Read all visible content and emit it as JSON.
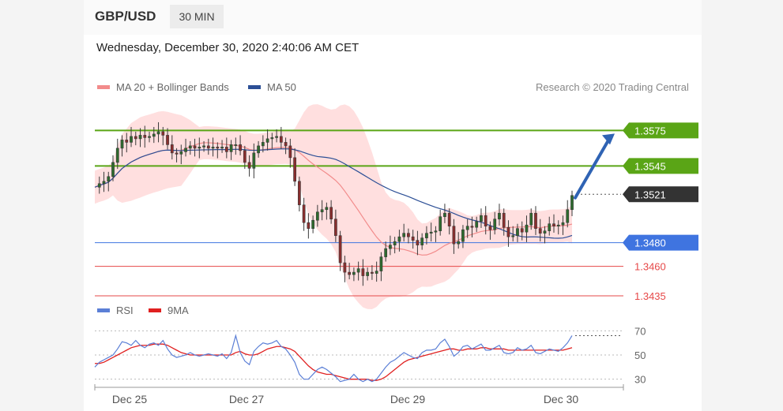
{
  "header": {
    "pair": "GBP/USD",
    "timeframe": "30 MIN"
  },
  "datetime": "Wednesday, December 30, 2020 2:40:06 AM CET",
  "legend_main": [
    {
      "label": "MA 20 + Bollinger Bands",
      "color": "#f28b8b"
    },
    {
      "label": "MA 50",
      "color": "#2c4f96"
    }
  ],
  "legend_rsi": [
    {
      "label": "RSI",
      "color": "#5b7fd6"
    },
    {
      "label": "9MA",
      "color": "#e02020"
    }
  ],
  "credit": "Research © 2020 Trading Central",
  "colors": {
    "resistance": "#5aa516",
    "support": "#3f74e0",
    "support_minor": "#e64848",
    "current": "#333333",
    "bands": "#ffd9d9",
    "ma20": "#f28b8b",
    "ma50": "#2c4f96",
    "candle": "#3a3a3a",
    "rsi": "#5b7fd6",
    "rsi_ma": "#e02020",
    "arrow": "#2f63b4"
  },
  "chart_data": [
    {
      "type": "candlestick",
      "yaxis": {
        "min": 1.3425,
        "max": 1.36
      },
      "x_labels": [
        "Dec 25",
        "Dec 27",
        "Dec 29",
        "Dec 30"
      ],
      "levels": [
        {
          "value": 1.3575,
          "label": "1.3575",
          "kind": "resistance"
        },
        {
          "value": 1.3545,
          "label": "1.3545",
          "kind": "resistance"
        },
        {
          "value": 1.3521,
          "label": "1.3521",
          "kind": "current"
        },
        {
          "value": 1.348,
          "label": "1.3480",
          "kind": "support"
        },
        {
          "value": 1.346,
          "label": "1.3460",
          "kind": "support_minor"
        },
        {
          "value": 1.3435,
          "label": "1.3435",
          "kind": "support_minor"
        }
      ],
      "price_path": [
        1.3527,
        1.353,
        1.3532,
        1.3536,
        1.3548,
        1.356,
        1.3567,
        1.3565,
        1.357,
        1.3568,
        1.3571,
        1.3569,
        1.357,
        1.3572,
        1.3574,
        1.3571,
        1.3563,
        1.3556,
        1.3555,
        1.3557,
        1.356,
        1.3562,
        1.356,
        1.3561,
        1.3562,
        1.356,
        1.3561,
        1.356,
        1.3561,
        1.3557,
        1.3563,
        1.3563,
        1.3558,
        1.3548,
        1.3543,
        1.3556,
        1.3562,
        1.3565,
        1.3568,
        1.3569,
        1.357,
        1.3565,
        1.3562,
        1.3552,
        1.3532,
        1.3512,
        1.3497,
        1.3492,
        1.3499,
        1.3506,
        1.3508,
        1.351,
        1.35,
        1.3486,
        1.3463,
        1.3455,
        1.3453,
        1.3455,
        1.3458,
        1.3452,
        1.3455,
        1.3454,
        1.3456,
        1.3468,
        1.3475,
        1.3478,
        1.3481,
        1.3485,
        1.3488,
        1.3485,
        1.3482,
        1.3478,
        1.3484,
        1.3488,
        1.3489,
        1.349,
        1.3502,
        1.3505,
        1.3494,
        1.3479,
        1.3481,
        1.3491,
        1.3494,
        1.3493,
        1.3498,
        1.3503,
        1.3494,
        1.3491,
        1.35,
        1.3505,
        1.3493,
        1.3485,
        1.3486,
        1.3492,
        1.3489,
        1.3495,
        1.3505,
        1.3492,
        1.3488,
        1.349,
        1.3496,
        1.3494,
        1.3495,
        1.3497,
        1.3508,
        1.352
      ],
      "projection": {
        "from": 1.3518,
        "to": 1.3575
      }
    },
    {
      "type": "line",
      "name": "RSI",
      "yaxis": {
        "min": 20,
        "max": 80
      },
      "ticks": [
        70,
        50,
        30
      ],
      "rsi": [
        40,
        44,
        46,
        48,
        50,
        55,
        61,
        60,
        58,
        62,
        58,
        56,
        59,
        60,
        58,
        62,
        55,
        50,
        48,
        49,
        50,
        52,
        50,
        49,
        50,
        51,
        50,
        49,
        51,
        47,
        52,
        66,
        52,
        45,
        42,
        53,
        57,
        60,
        59,
        60,
        62,
        57,
        55,
        50,
        44,
        34,
        30,
        30,
        34,
        38,
        40,
        38,
        35,
        32,
        28,
        29,
        30,
        34,
        30,
        28,
        30,
        28,
        30,
        35,
        40,
        44,
        46,
        49,
        52,
        50,
        48,
        47,
        52,
        54,
        54,
        55,
        60,
        63,
        57,
        49,
        52,
        57,
        58,
        55,
        57,
        59,
        54,
        54,
        56,
        58,
        52,
        51,
        52,
        56,
        54,
        55,
        58,
        52,
        51,
        53,
        55,
        54,
        53,
        56,
        60,
        66
      ],
      "rsi_ma": [
        43,
        43,
        44,
        46,
        48,
        50,
        52,
        54,
        56,
        57,
        58,
        58,
        58,
        59,
        59,
        59,
        58,
        56,
        54,
        52,
        51,
        50,
        50,
        50,
        50,
        50,
        50,
        50,
        50,
        50,
        50,
        52,
        53,
        51,
        50,
        50,
        51,
        53,
        55,
        56,
        57,
        57,
        56,
        55,
        53,
        49,
        45,
        41,
        38,
        36,
        35,
        34,
        34,
        33,
        32,
        31,
        30,
        30,
        30,
        30,
        30,
        29,
        29,
        30,
        32,
        35,
        38,
        41,
        44,
        46,
        47,
        48,
        49,
        50,
        51,
        52,
        53,
        54,
        55,
        55,
        54,
        54,
        55,
        55,
        55,
        56,
        56,
        55,
        55,
        55,
        55,
        54,
        54,
        54,
        54,
        54,
        54,
        54,
        54,
        54,
        54,
        54,
        54,
        54,
        55,
        56
      ]
    }
  ]
}
